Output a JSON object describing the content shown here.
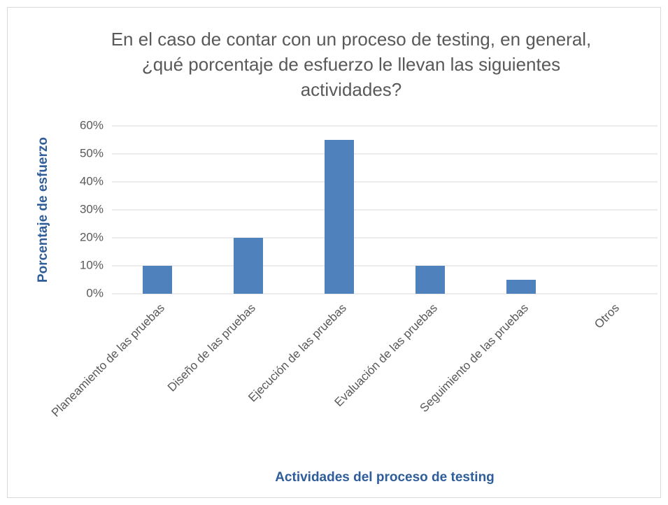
{
  "chart_data": {
    "type": "bar",
    "title": "En el caso de contar con un proceso de testing, en general, ¿qué porcentaje de esfuerzo le llevan las siguientes actividades?",
    "xlabel": "Actividades del proceso de testing",
    "ylabel": "Porcentaje de esfuerzo",
    "categories": [
      "Planeamiento de las pruebas",
      "Diseño de las pruebas",
      "Ejecución de las pruebas",
      "Evaluación de las pruebas",
      "Seguimiento de las pruebas",
      "Otros"
    ],
    "values": [
      10,
      20,
      55,
      10,
      5,
      0
    ],
    "color": "#4f81bd",
    "ylim": [
      0,
      60
    ],
    "yticks": [
      {
        "value": 0,
        "label": "0%"
      },
      {
        "value": 10,
        "label": "10%"
      },
      {
        "value": 20,
        "label": "20%"
      },
      {
        "value": 30,
        "label": "30%"
      },
      {
        "value": 40,
        "label": "40%"
      },
      {
        "value": 50,
        "label": "50%"
      },
      {
        "value": 60,
        "label": "60%"
      }
    ],
    "grid": true
  }
}
